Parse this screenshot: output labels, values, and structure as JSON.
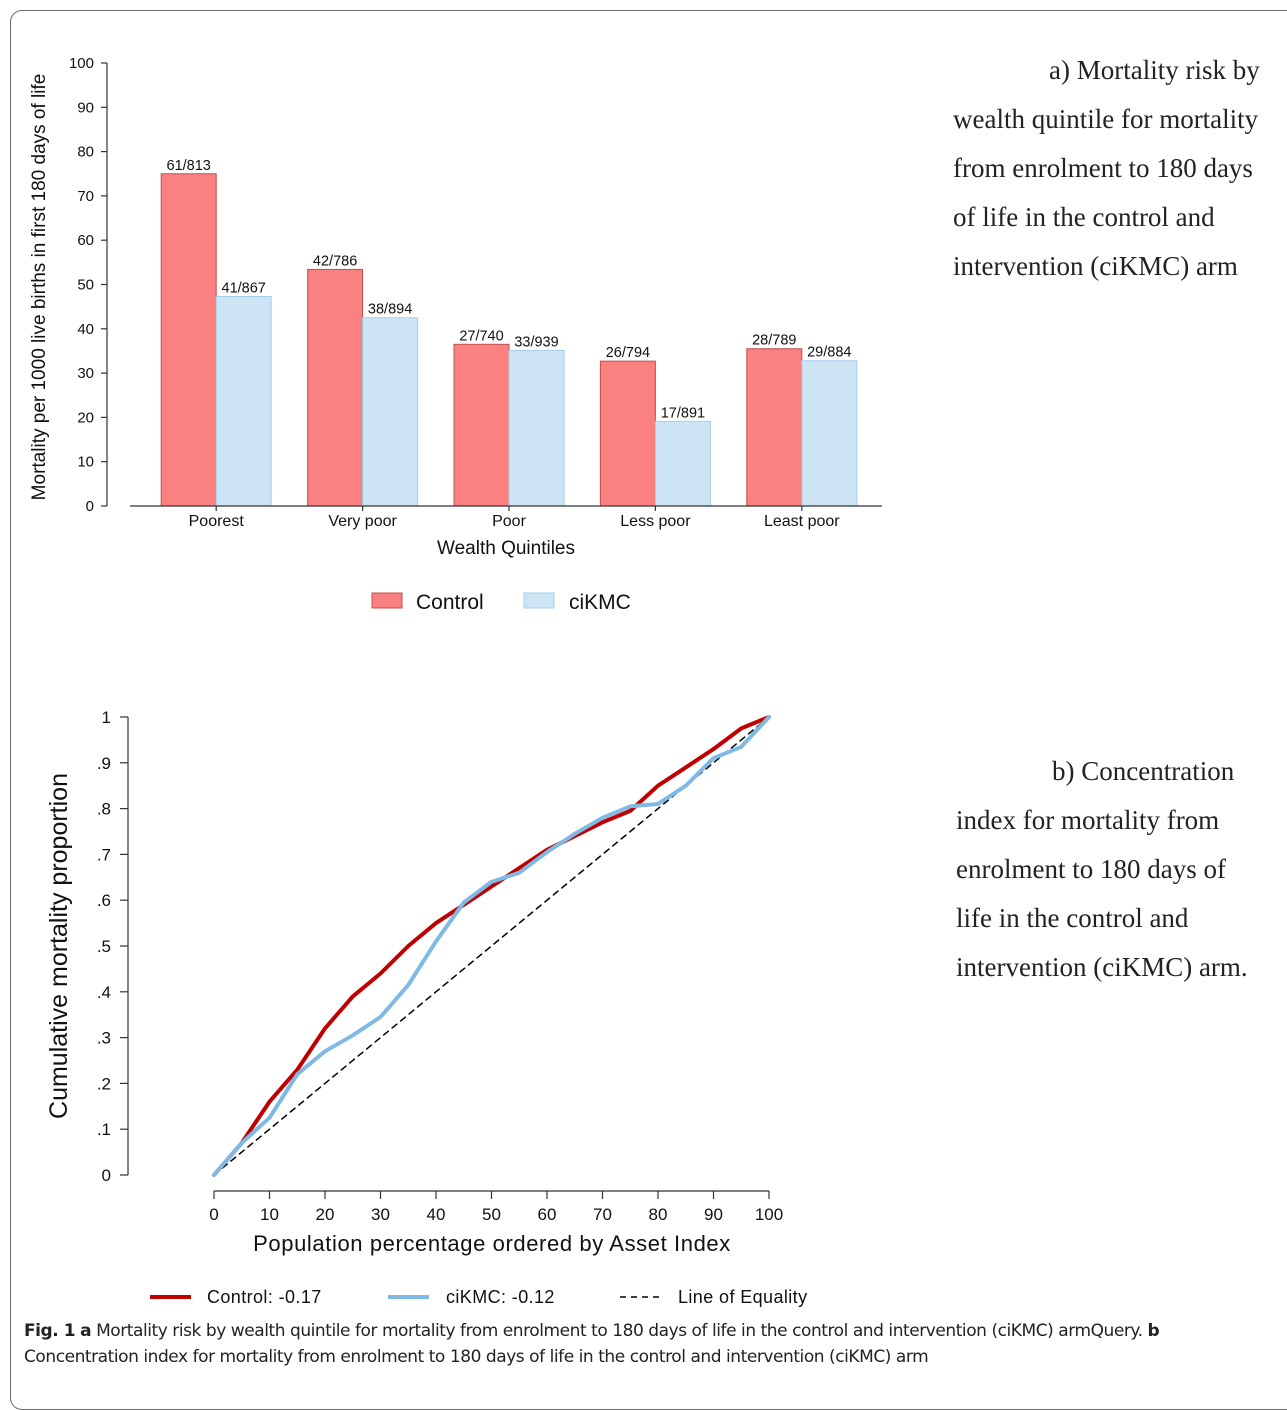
{
  "colors": {
    "control_bar": "#fb8080",
    "control_bar_edge": "#c0504d",
    "cikmc_bar": "#cce4f4",
    "cikmc_bar_edge": "#a7cde8",
    "control_line": "#c00000",
    "cikmc_line": "#7fb9e4",
    "equality_line": "#000000"
  },
  "note_a": [
    "a) Mortality risk by",
    "wealth quintile for mortality",
    "from enrolment to 180 days",
    "of life in the control and",
    "intervention (ciKMC) arm"
  ],
  "note_b": [
    "b) Concentration",
    "index for mortality from",
    "enrolment to 180 days of",
    "life in the control and",
    "intervention (ciKMC) arm."
  ],
  "caption": {
    "fig_label": "Fig. 1",
    "a_label": "a",
    "a_text": "Mortality risk by wealth quintile for mortality from enrolment to 180 days of life in the control and intervention (ciKMC) armQuery.",
    "b_label": "b",
    "b_text": "Concentration index for mortality from enrolment to 180 days of life in the control and intervention (ciKMC) arm"
  },
  "chart_data": [
    {
      "type": "bar",
      "xlabel": "Wealth Quintiles",
      "ylabel": "Mortality per 1000 live births in first 180 days of life",
      "ylim": [
        0,
        100
      ],
      "yticks": [
        "0",
        "10",
        "20",
        "30",
        "40",
        "50",
        "60",
        "70",
        "80",
        "90",
        "100"
      ],
      "categories": [
        "Poorest",
        "Very poor",
        "Poor",
        "Less poor",
        "Least poor"
      ],
      "legend_position": "bottom",
      "series": [
        {
          "name": "Control",
          "values": [
            75.0,
            53.4,
            36.5,
            32.7,
            35.5
          ],
          "labels": [
            "61/813",
            "42/786",
            "27/740",
            "26/794",
            "28/789"
          ]
        },
        {
          "name": "ciKMC",
          "values": [
            47.3,
            42.5,
            35.1,
            19.1,
            32.8
          ],
          "labels": [
            "41/867",
            "38/894",
            "33/939",
            "17/891",
            "29/884"
          ]
        }
      ]
    },
    {
      "type": "line",
      "xlabel": "Population percentage ordered by Asset Index",
      "ylabel": "Cumulative mortality proportion",
      "xlim": [
        0,
        100
      ],
      "ylim": [
        0,
        1
      ],
      "xticks": [
        "0",
        "10",
        "20",
        "30",
        "40",
        "50",
        "60",
        "70",
        "80",
        "90",
        "100"
      ],
      "yticks": [
        "0",
        ".1",
        ".2",
        ".3",
        ".4",
        ".5",
        ".6",
        ".7",
        ".8",
        ".9",
        "1"
      ],
      "legend_position": "bottom",
      "series": [
        {
          "name": "Control: -0.17",
          "x": [
            0,
            5,
            10,
            15,
            20,
            25,
            30,
            35,
            40,
            45,
            50,
            55,
            60,
            65,
            70,
            75,
            80,
            85,
            90,
            95,
            100
          ],
          "y": [
            0,
            0.07,
            0.16,
            0.23,
            0.32,
            0.39,
            0.44,
            0.5,
            0.55,
            0.59,
            0.63,
            0.67,
            0.71,
            0.74,
            0.77,
            0.795,
            0.85,
            0.89,
            0.93,
            0.975,
            1.0
          ]
        },
        {
          "name": "ciKMC: -0.12",
          "x": [
            0,
            5,
            10,
            15,
            20,
            25,
            30,
            35,
            40,
            45,
            50,
            55,
            60,
            65,
            70,
            75,
            80,
            85,
            90,
            95,
            100
          ],
          "y": [
            0,
            0.07,
            0.125,
            0.22,
            0.27,
            0.305,
            0.345,
            0.415,
            0.51,
            0.595,
            0.64,
            0.66,
            0.705,
            0.745,
            0.78,
            0.805,
            0.81,
            0.85,
            0.91,
            0.935,
            1.0
          ]
        },
        {
          "name": "Line of Equality",
          "x": [
            0,
            100
          ],
          "y": [
            0,
            1
          ]
        }
      ]
    }
  ]
}
